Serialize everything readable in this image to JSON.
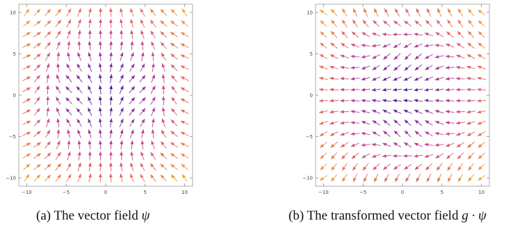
{
  "chart_data": [
    {
      "type": "vector_field",
      "panel": "a",
      "caption_prefix": "(a) The vector field ",
      "caption_math": "ψ",
      "xlim": [
        -11,
        11
      ],
      "ylim": [
        -11,
        11
      ],
      "xticks": [
        -10,
        -5,
        0,
        5,
        10
      ],
      "yticks": [
        -10,
        -5,
        0,
        5,
        10
      ],
      "grid_n": 16,
      "field_description": "smooth rotating direction field; arrows point up near left, bottom and top edges, right along upper band and lower-left band",
      "colormap": [
        "#2b1a8c",
        "#7a2c9e",
        "#c2408f",
        "#e86a55",
        "#f4a12a"
      ]
    },
    {
      "type": "vector_field",
      "panel": "b",
      "caption_prefix": "(b) The transformed vector field ",
      "caption_math": "g · ψ",
      "xlim": [
        -11,
        11
      ],
      "ylim": [
        -11,
        11
      ],
      "xticks": [
        -10,
        -5,
        0,
        5,
        10
      ],
      "yticks": [
        -10,
        -5,
        0,
        5,
        10
      ],
      "grid_n": 16,
      "field_description": "rotated version of field (a); arrows point left along top and bottom, diagonal in upper-left, up in center band",
      "colormap": [
        "#2b1a8c",
        "#7a2c9e",
        "#c2408f",
        "#e86a55",
        "#f4a12a"
      ]
    }
  ]
}
